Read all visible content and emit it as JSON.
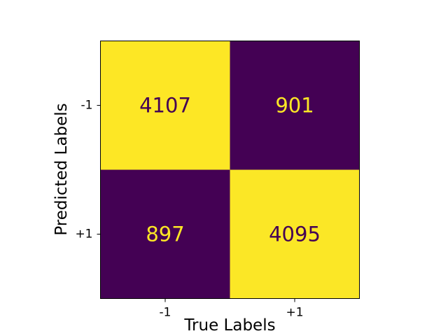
{
  "chart_data": {
    "type": "heatmap",
    "title": "",
    "xlabel": "True Labels",
    "ylabel": "Predicted Labels",
    "x_categories": [
      "-1",
      "+1"
    ],
    "y_categories": [
      "-1",
      "+1"
    ],
    "values": [
      [
        4107,
        901
      ],
      [
        897,
        4095
      ]
    ],
    "colormap": "viridis",
    "colors": {
      "low": "#440154",
      "high": "#fde725",
      "text_on_low": "#fde725",
      "text_on_high": "#440154"
    },
    "grid": false,
    "colorbar": false
  }
}
